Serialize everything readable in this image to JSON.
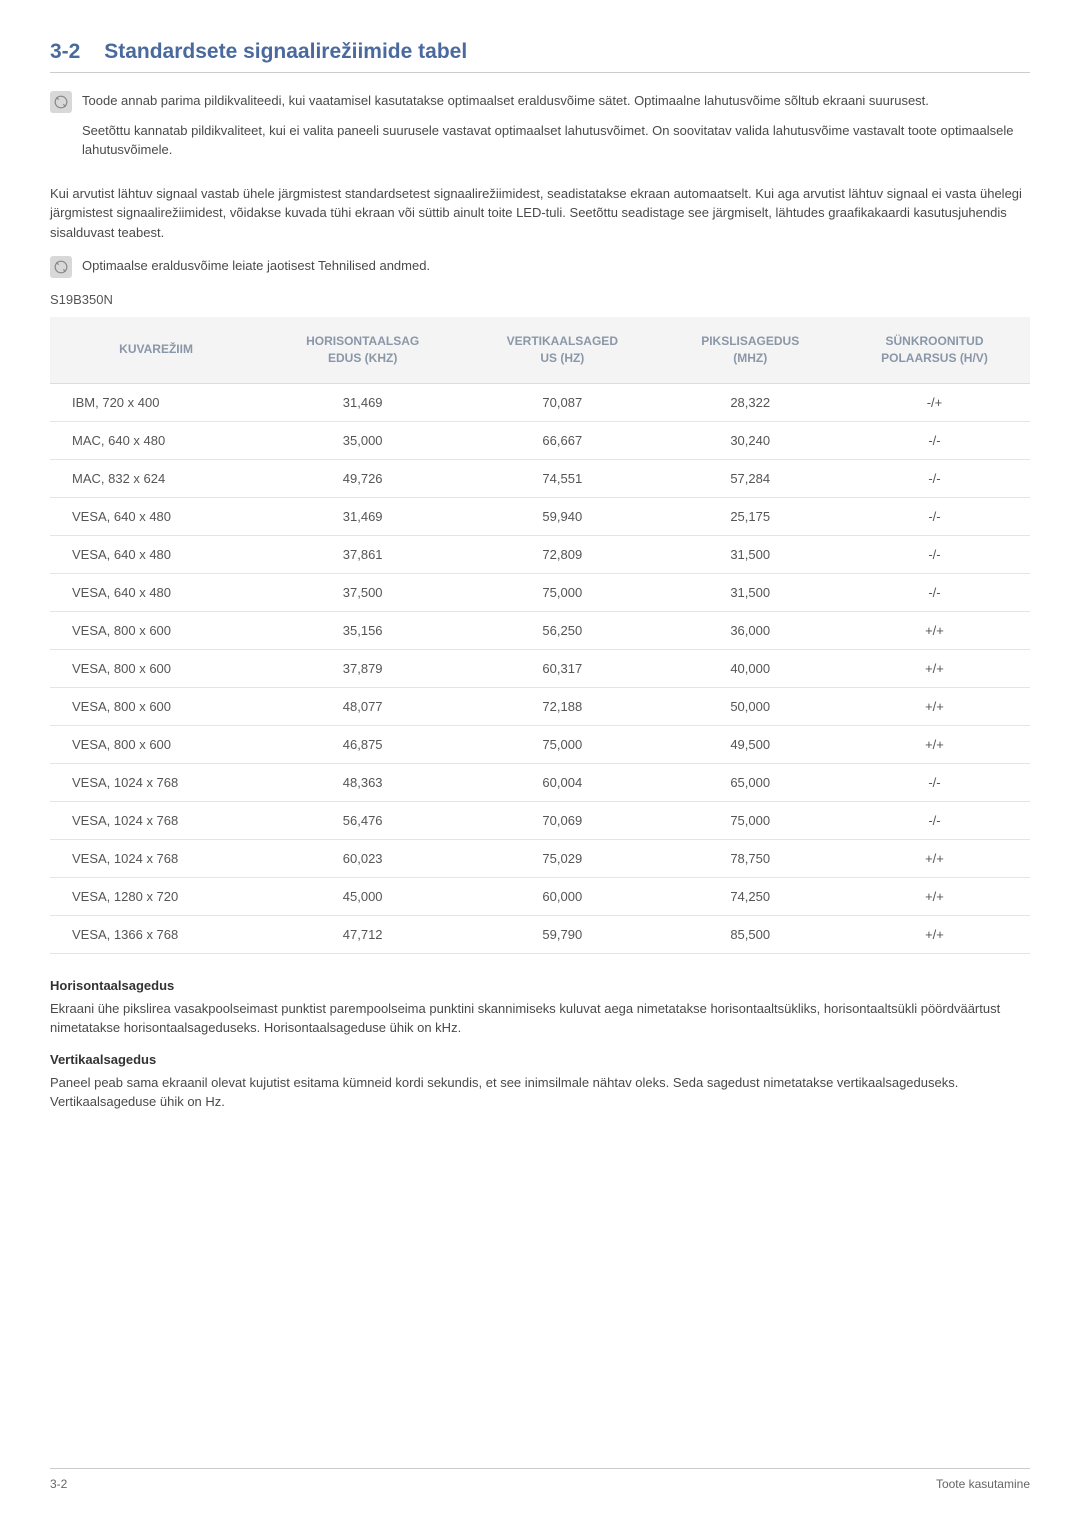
{
  "heading": {
    "number": "3-2",
    "title": "Standardsete signaalirežiimide tabel"
  },
  "note1": {
    "para1": "Toode annab parima pildikvaliteedi, kui vaatamisel kasutatakse optimaalset eraldusvõime sätet. Optimaalne lahutusvõime sõltub ekraani suurusest.",
    "para2": "Seetõttu kannatab pildikvaliteet, kui ei valita paneeli suurusele vastavat optimaalset lahutusvõimet. On soovitatav valida lahutusvõime vastavalt toote optimaalsele lahutusvõimele."
  },
  "body_para": "Kui arvutist lähtuv signaal vastab ühele järgmistest standardsetest signaalirežiimidest, seadistatakse ekraan automaatselt. Kui aga arvutist lähtuv signaal ei vasta ühelegi järgmistest signaalirežiimidest, võidakse kuvada tühi ekraan või süttib ainult toite LED-tuli. Seetõttu seadistage see järgmiselt, lähtudes graafikakaardi kasutusjuhendis sisalduvast teabest.",
  "note2": {
    "para1": "Optimaalse eraldusvõime leiate jaotisest Tehnilised andmed."
  },
  "model": "S19B350N",
  "table": {
    "columns": [
      "KUVAREŽIIM",
      "HORISONTAALSAGEDUS (KHZ)",
      "VERTIKAALSAGEDUS (HZ)",
      "PIKSLISAGEDUS (MHZ)",
      "SÜNKROONITUD POLAARSUS (H/V)"
    ],
    "col_header_lines": {
      "c1a": "HORISONTAALSAG",
      "c1b": "EDUS (KHZ)",
      "c2a": "VERTIKAALSAGED",
      "c2b": "US (HZ)",
      "c3a": "PIKSLISAGEDUS",
      "c3b": "(MHZ)",
      "c4a": "SÜNKROONITUD",
      "c4b": "POLAARSUS (H/V)"
    },
    "rows": [
      [
        "IBM, 720 x 400",
        "31,469",
        "70,087",
        "28,322",
        "-/+"
      ],
      [
        "MAC, 640 x 480",
        "35,000",
        "66,667",
        "30,240",
        "-/-"
      ],
      [
        "MAC, 832 x 624",
        "49,726",
        "74,551",
        "57,284",
        "-/-"
      ],
      [
        "VESA, 640 x 480",
        "31,469",
        "59,940",
        "25,175",
        "-/-"
      ],
      [
        "VESA, 640 x 480",
        "37,861",
        "72,809",
        "31,500",
        "-/-"
      ],
      [
        "VESA, 640 x 480",
        "37,500",
        "75,000",
        "31,500",
        "-/-"
      ],
      [
        "VESA, 800 x 600",
        "35,156",
        "56,250",
        "36,000",
        "+/+"
      ],
      [
        "VESA, 800 x 600",
        "37,879",
        "60,317",
        "40,000",
        "+/+"
      ],
      [
        "VESA, 800 x 600",
        "48,077",
        "72,188",
        "50,000",
        "+/+"
      ],
      [
        "VESA, 800 x 600",
        "46,875",
        "75,000",
        "49,500",
        "+/+"
      ],
      [
        "VESA, 1024 x 768",
        "48,363",
        "60,004",
        "65,000",
        "-/-"
      ],
      [
        "VESA, 1024 x 768",
        "56,476",
        "70,069",
        "75,000",
        "-/-"
      ],
      [
        "VESA, 1024 x 768",
        "60,023",
        "75,029",
        "78,750",
        "+/+"
      ],
      [
        "VESA, 1280 x 720",
        "45,000",
        "60,000",
        "74,250",
        "+/+"
      ],
      [
        "VESA, 1366 x 768",
        "47,712",
        "59,790",
        "85,500",
        "+/+"
      ]
    ]
  },
  "sections": {
    "h1": "Horisontaalsagedus",
    "p1": "Ekraani ühe pikslirea vasakpoolseimast punktist parempoolseima punktini skannimiseks kuluvat aega nimetatakse horisontaaltsükliks, horisontaaltsükli pöördväärtust nimetatakse horisontaalsageduseks. Horisontaalsageduse ühik on kHz.",
    "h2": "Vertikaalsagedus",
    "p2": "Paneel peab sama ekraanil olevat kujutist esitama kümneid kordi sekundis, et see inimsilmale nähtav oleks. Seda sagedust nimetatakse vertikaalsageduseks. Vertikaalsageduse ühik on Hz."
  },
  "footer": {
    "left": "3-2",
    "right": "Toote kasutamine"
  },
  "colors": {
    "heading": "#4a6a9e",
    "th_text": "#8a97a8",
    "th_bg": "#f4f4f4",
    "border": "#dddddd",
    "body_text": "#4a4a4a"
  }
}
